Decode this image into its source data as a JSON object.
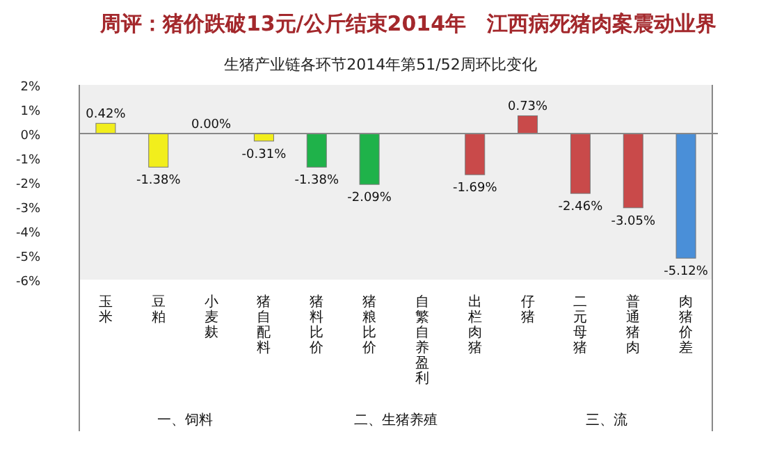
{
  "chart_data": {
    "type": "bar",
    "title": "周评：猪价跌破13元/公斤结束2014年　江西病死猪肉案震动业界",
    "subtitle": "生猪产业链各环节2014年第51/52周环比变化",
    "categories": [
      "玉米",
      "豆粕",
      "小麦麸",
      "猪自配料",
      "猪料比价",
      "猪粮比价",
      "自繁自养盈利",
      "出栏肉猪",
      "仔猪",
      "二元母猪",
      "普通猪肉",
      "肉猪价差"
    ],
    "values": [
      0.42,
      -1.38,
      0.0,
      -0.31,
      -1.38,
      -2.09,
      null,
      -1.69,
      0.73,
      -2.46,
      -3.05,
      -5.12
    ],
    "colors": [
      "#f2ee1c",
      "#f2ee1c",
      "#f2ee1c",
      "#f2ee1c",
      "#1fb24a",
      "#1fb24a",
      null,
      "#c94a4a",
      "#c94a4a",
      "#c94a4a",
      "#c94a4a",
      "#4a8fd8"
    ],
    "value_labels": [
      "0.42%",
      "-1.38%",
      "0.00%",
      "-0.31%",
      "-1.38%",
      "-2.09%",
      null,
      "-1.69%",
      "0.73%",
      "-2.46%",
      "-3.05%",
      "-5.12%"
    ],
    "ylim": [
      -6,
      2
    ],
    "yticks": [
      {
        "value": -6,
        "label": "-6%"
      },
      {
        "value": -5,
        "label": "-5%"
      },
      {
        "value": -4,
        "label": "-4%"
      },
      {
        "value": -3,
        "label": "-3%"
      },
      {
        "value": -2,
        "label": "-2%"
      },
      {
        "value": -1,
        "label": "-1%"
      },
      {
        "value": 0,
        "label": "0%"
      },
      {
        "value": 1,
        "label": "1%"
      },
      {
        "value": 2,
        "label": "2%"
      }
    ],
    "annotations": [
      "一、饲料",
      "二、生猪养殖",
      "三、流"
    ]
  }
}
